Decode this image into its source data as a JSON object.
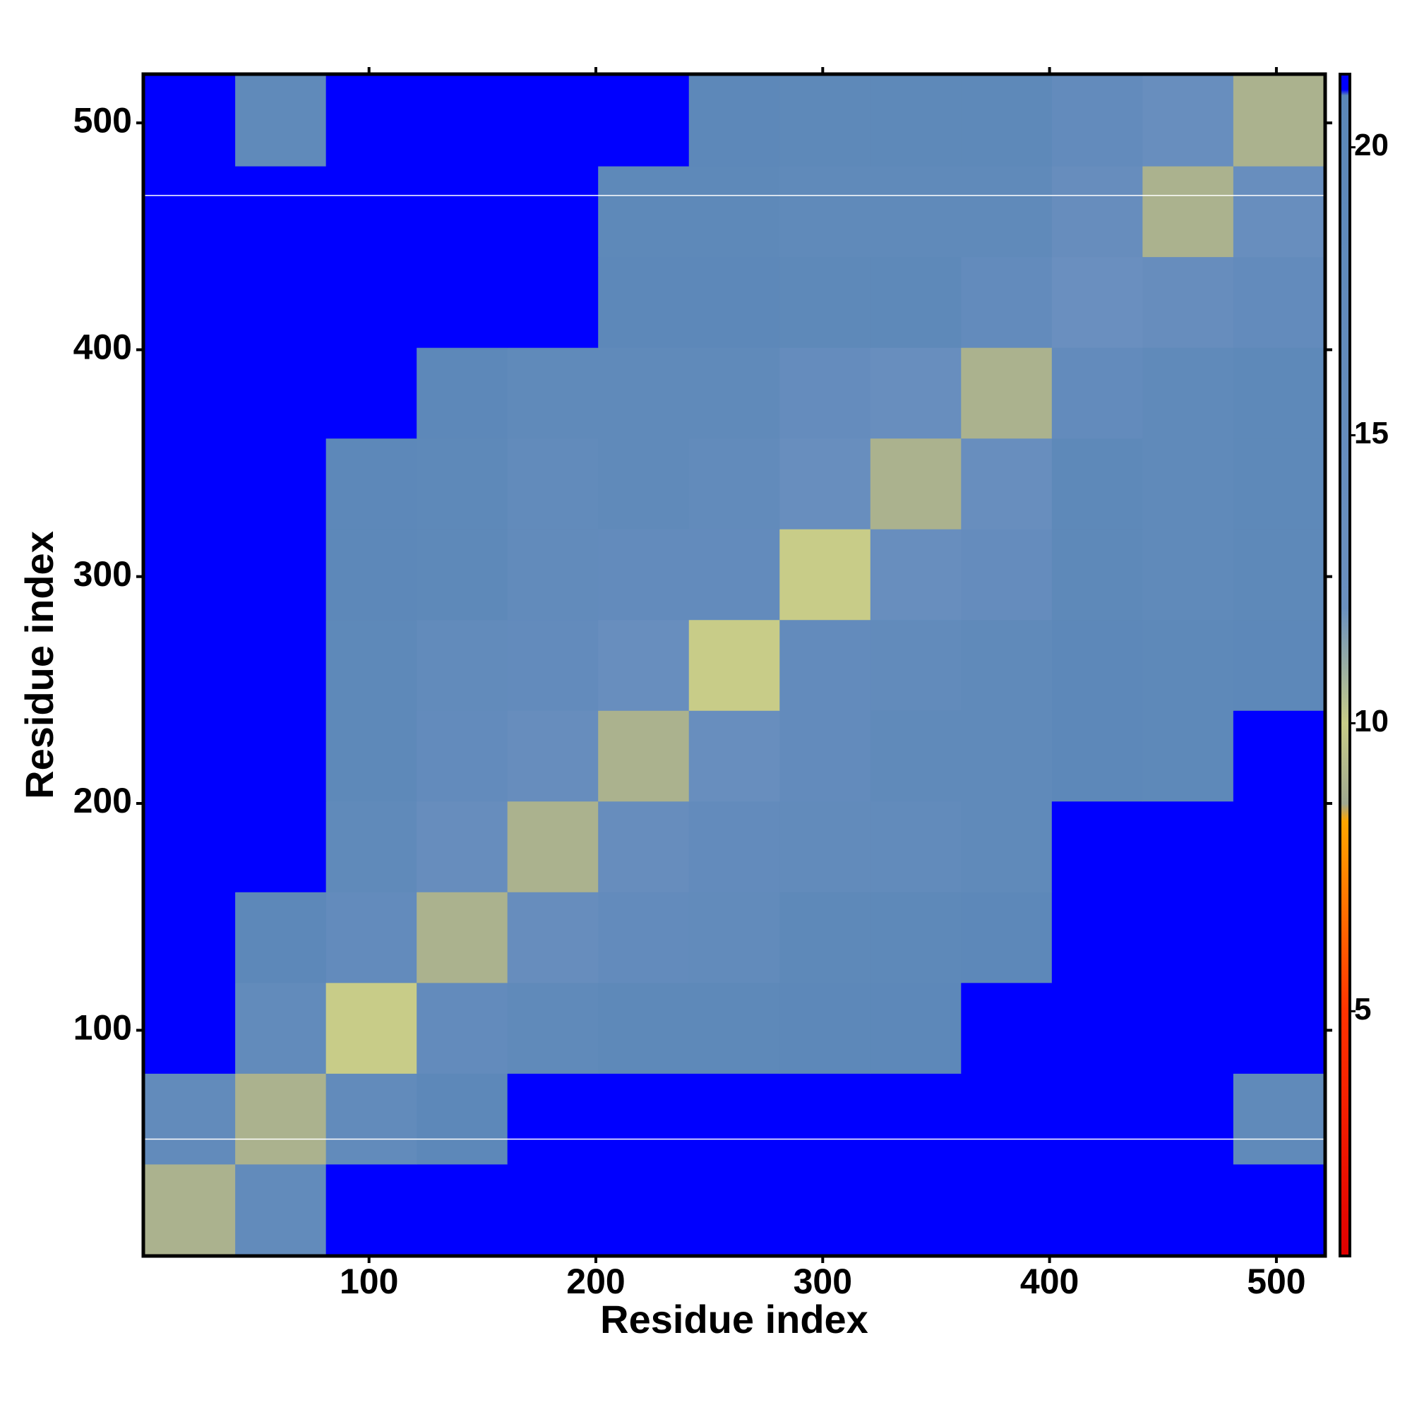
{
  "chart_data": {
    "type": "heatmap",
    "xlabel": "Residue index",
    "ylabel": "Residue index",
    "xlim": [
      0.5,
      521.5
    ],
    "ylim": [
      0.5,
      521.5
    ],
    "xticks": [
      100,
      200,
      300,
      400,
      500
    ],
    "yticks": [
      100,
      200,
      300,
      400,
      500
    ],
    "bins": [
      1,
      41,
      81,
      121,
      161,
      201,
      241,
      281,
      321,
      361,
      401,
      441,
      481,
      521
    ],
    "values": [
      [
        9,
        17,
        21,
        21,
        21,
        21,
        21,
        21,
        21,
        21,
        21,
        21,
        21
      ],
      [
        17,
        9,
        17,
        20,
        21,
        21,
        21,
        21,
        21,
        21,
        21,
        21,
        18
      ],
      [
        21,
        17,
        10,
        16,
        18,
        19,
        19,
        20,
        20,
        21,
        21,
        21,
        21
      ],
      [
        21,
        20,
        16,
        9,
        14,
        16,
        17,
        19,
        19,
        20,
        21,
        21,
        21
      ],
      [
        21,
        21,
        18,
        14,
        9,
        14,
        16,
        17,
        17,
        18,
        21,
        21,
        21
      ],
      [
        21,
        21,
        19,
        16,
        14,
        9,
        13,
        16,
        18,
        18,
        20,
        19,
        21
      ],
      [
        21,
        21,
        19,
        17,
        16,
        13,
        10,
        16,
        17,
        18,
        20,
        19,
        20
      ],
      [
        21,
        21,
        20,
        19,
        17,
        16,
        16,
        10,
        13,
        15,
        19,
        18,
        19
      ],
      [
        21,
        21,
        20,
        19,
        17,
        18,
        17,
        13,
        9,
        13,
        19,
        18,
        19
      ],
      [
        21,
        21,
        21,
        20,
        18,
        18,
        18,
        15,
        13,
        9,
        16,
        18,
        19
      ],
      [
        21,
        21,
        21,
        21,
        21,
        20,
        20,
        19,
        19,
        16,
        12,
        14,
        16
      ],
      [
        21,
        21,
        21,
        21,
        21,
        19,
        19,
        18,
        18,
        18,
        14,
        9,
        13
      ],
      [
        21,
        18,
        21,
        21,
        21,
        21,
        20,
        19,
        19,
        19,
        16,
        13,
        9
      ]
    ],
    "zlim": [
      0.75,
      21.27
    ],
    "zticks": [
      5,
      10,
      15,
      20
    ],
    "colorscale": [
      [
        0.75,
        "#e00000"
      ],
      [
        5,
        "#ff3300"
      ],
      [
        8.3,
        "#ffa500"
      ],
      [
        8.6,
        "#a0a890"
      ],
      [
        10,
        "#c8cc88"
      ],
      [
        12,
        "#6a8fbf"
      ],
      [
        20.9,
        "#5b87b8"
      ],
      [
        21,
        "#0000ff"
      ]
    ],
    "hlines": [
      52,
      468
    ],
    "hline_color": "#ffffff"
  }
}
